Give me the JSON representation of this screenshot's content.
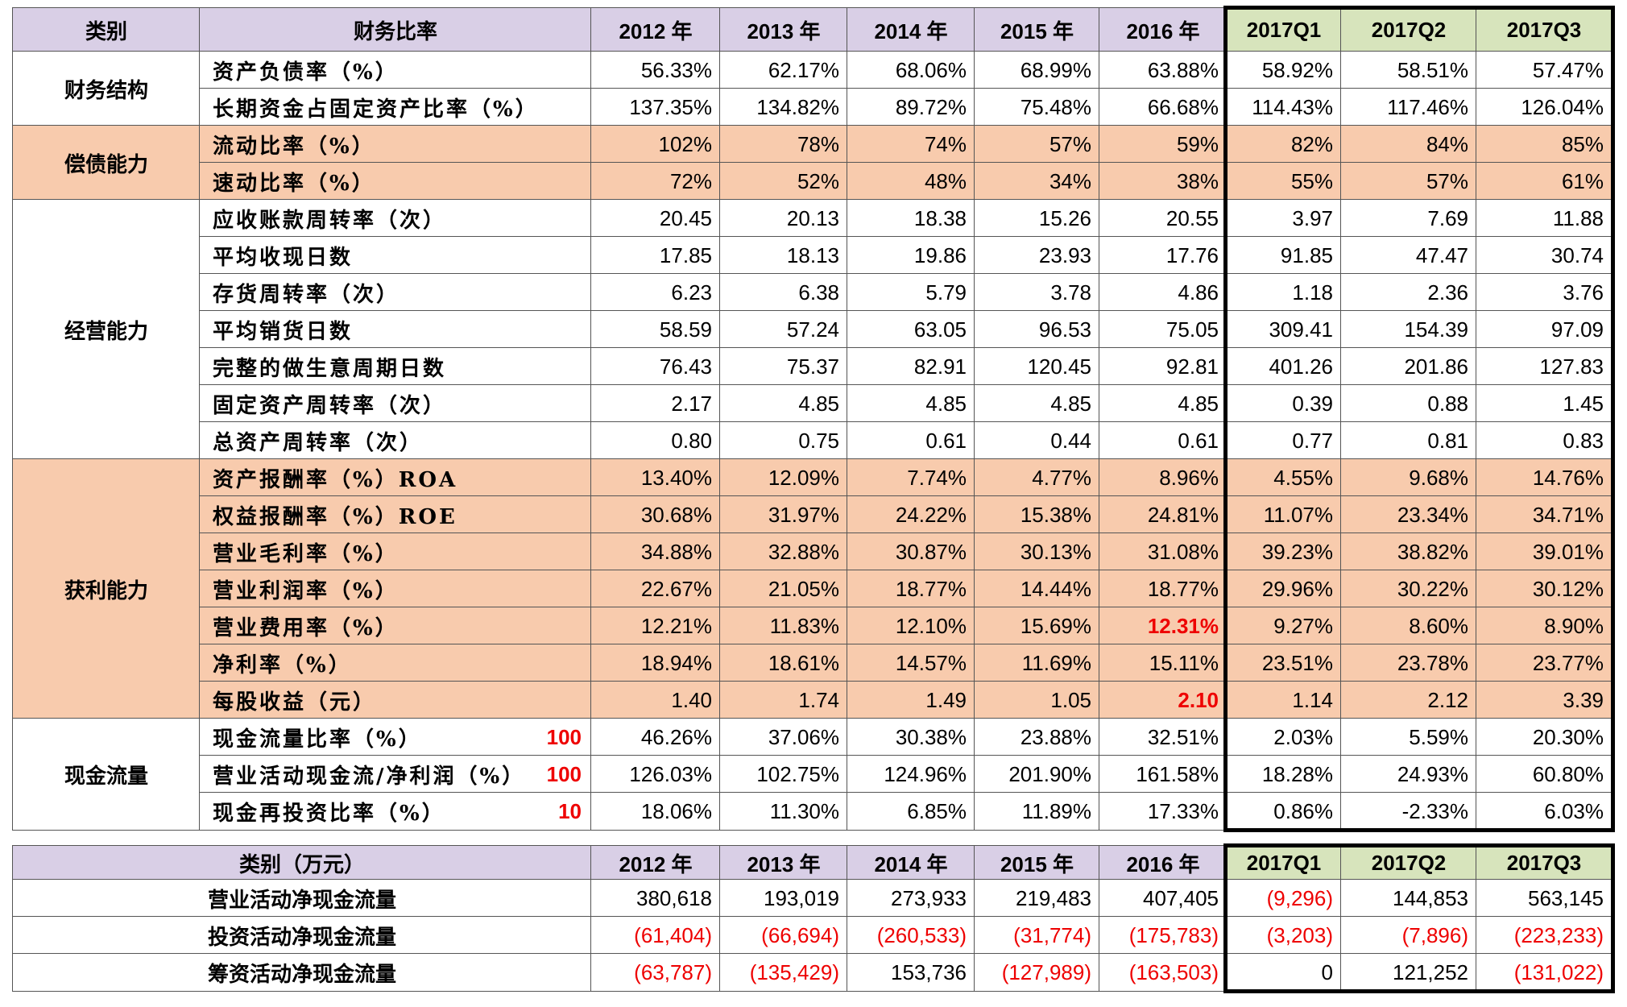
{
  "table": {
    "header": [
      "类别",
      "财务比率",
      "2012 年",
      "2013 年",
      "2014 年",
      "2015 年",
      "2016 年",
      "2017Q1",
      "2017Q2",
      "2017Q3"
    ],
    "groups": [
      {
        "category": "财务结构",
        "rows": [
          {
            "label": "资产负债率（%）",
            "values": [
              "56.33%",
              "62.17%",
              "68.06%",
              "68.99%",
              "63.88%",
              "58.92%",
              "58.51%",
              "57.47%"
            ]
          },
          {
            "label": "长期资金占固定资产比率（%）",
            "values": [
              "137.35%",
              "134.82%",
              "89.72%",
              "75.48%",
              "66.68%",
              "114.43%",
              "117.46%",
              "126.04%"
            ]
          }
        ]
      },
      {
        "category": "偿债能力",
        "rows": [
          {
            "label": "流动比率（%）",
            "values": [
              "102%",
              "78%",
              "74%",
              "57%",
              "59%",
              "82%",
              "84%",
              "85%"
            ]
          },
          {
            "label": "速动比率（%）",
            "values": [
              "72%",
              "52%",
              "48%",
              "34%",
              "38%",
              "55%",
              "57%",
              "61%"
            ]
          }
        ]
      },
      {
        "category": "经营能力",
        "rows": [
          {
            "label": "应收账款周转率（次）",
            "values": [
              "20.45",
              "20.13",
              "18.38",
              "15.26",
              "20.55",
              "3.97",
              "7.69",
              "11.88"
            ]
          },
          {
            "label": "平均收现日数",
            "values": [
              "17.85",
              "18.13",
              "19.86",
              "23.93",
              "17.76",
              "91.85",
              "47.47",
              "30.74"
            ]
          },
          {
            "label": "存货周转率（次）",
            "values": [
              "6.23",
              "6.38",
              "5.79",
              "3.78",
              "4.86",
              "1.18",
              "2.36",
              "3.76"
            ]
          },
          {
            "label": "平均销货日数",
            "values": [
              "58.59",
              "57.24",
              "63.05",
              "96.53",
              "75.05",
              "309.41",
              "154.39",
              "97.09"
            ]
          },
          {
            "label": "完整的做生意周期日数",
            "values": [
              "76.43",
              "75.37",
              "82.91",
              "120.45",
              "92.81",
              "401.26",
              "201.86",
              "127.83"
            ]
          },
          {
            "label": "固定资产周转率（次）",
            "values": [
              "2.17",
              "4.85",
              "4.85",
              "4.85",
              "4.85",
              "0.39",
              "0.88",
              "1.45"
            ]
          },
          {
            "label": "总资产周转率（次）",
            "values": [
              "0.80",
              "0.75",
              "0.61",
              "0.44",
              "0.61",
              "0.77",
              "0.81",
              "0.83"
            ]
          }
        ]
      },
      {
        "category": "获利能力",
        "rows": [
          {
            "label": "资产报酬率（%）ROA",
            "values": [
              "13.40%",
              "12.09%",
              "7.74%",
              "4.77%",
              "8.96%",
              "4.55%",
              "9.68%",
              "14.76%"
            ]
          },
          {
            "label": "权益报酬率（%）ROE",
            "values": [
              "30.68%",
              "31.97%",
              "24.22%",
              "15.38%",
              "24.81%",
              "11.07%",
              "23.34%",
              "34.71%"
            ]
          },
          {
            "label": "营业毛利率（%）",
            "values": [
              "34.88%",
              "32.88%",
              "30.87%",
              "30.13%",
              "31.08%",
              "39.23%",
              "38.82%",
              "39.01%"
            ]
          },
          {
            "label": "营业利润率（%）",
            "values": [
              "22.67%",
              "21.05%",
              "18.77%",
              "14.44%",
              "18.77%",
              "29.96%",
              "30.22%",
              "30.12%"
            ]
          },
          {
            "label": "营业费用率（%）",
            "values": [
              "12.21%",
              "11.83%",
              "12.10%",
              "15.69%",
              "12.31%",
              "9.27%",
              "8.60%",
              "8.90%"
            ]
          },
          {
            "label": "净利率（%）",
            "values": [
              "18.94%",
              "18.61%",
              "14.57%",
              "11.69%",
              "15.11%",
              "23.51%",
              "23.78%",
              "23.77%"
            ]
          },
          {
            "label": "每股收益（元）",
            "values": [
              "1.40",
              "1.74",
              "1.49",
              "1.05",
              "2.10",
              "1.14",
              "2.12",
              "3.39"
            ]
          }
        ]
      },
      {
        "category": "现金流量",
        "rows": [
          {
            "label": "现金流量比率（%）",
            "threshold": "100",
            "values": [
              "46.26%",
              "37.06%",
              "30.38%",
              "23.88%",
              "32.51%",
              "2.03%",
              "5.59%",
              "20.30%"
            ]
          },
          {
            "label": "营业活动现金流/净利润（%）",
            "threshold": "100",
            "values": [
              "126.03%",
              "102.75%",
              "124.96%",
              "201.90%",
              "161.58%",
              "18.28%",
              "24.93%",
              "60.80%"
            ]
          },
          {
            "label": "现金再投资比率（%）",
            "threshold": "10",
            "values": [
              "18.06%",
              "11.30%",
              "6.85%",
              "11.89%",
              "17.33%",
              "0.86%",
              "-2.33%",
              "6.03%"
            ]
          }
        ]
      }
    ]
  },
  "cash_table": {
    "header": [
      "类别（万元）",
      "2012 年",
      "2013 年",
      "2014 年",
      "2015 年",
      "2016 年",
      "2017Q1",
      "2017Q2",
      "2017Q3"
    ],
    "rows": [
      {
        "label": "营业活动净现金流量",
        "values": [
          "380,618",
          "193,019",
          "273,933",
          "219,483",
          "407,405",
          "(9,296)",
          "144,853",
          "563,145"
        ]
      },
      {
        "label": "投资活动净现金流量",
        "values": [
          "(61,404)",
          "(66,694)",
          "(260,533)",
          "(31,774)",
          "(175,783)",
          "(3,203)",
          "(7,896)",
          "(223,233)"
        ]
      },
      {
        "label": "筹资活动净现金流量",
        "values": [
          "(63,787)",
          "(135,429)",
          "153,736",
          "(127,989)",
          "(163,503)",
          "0",
          "121,252",
          "(131,022)"
        ]
      }
    ]
  }
}
